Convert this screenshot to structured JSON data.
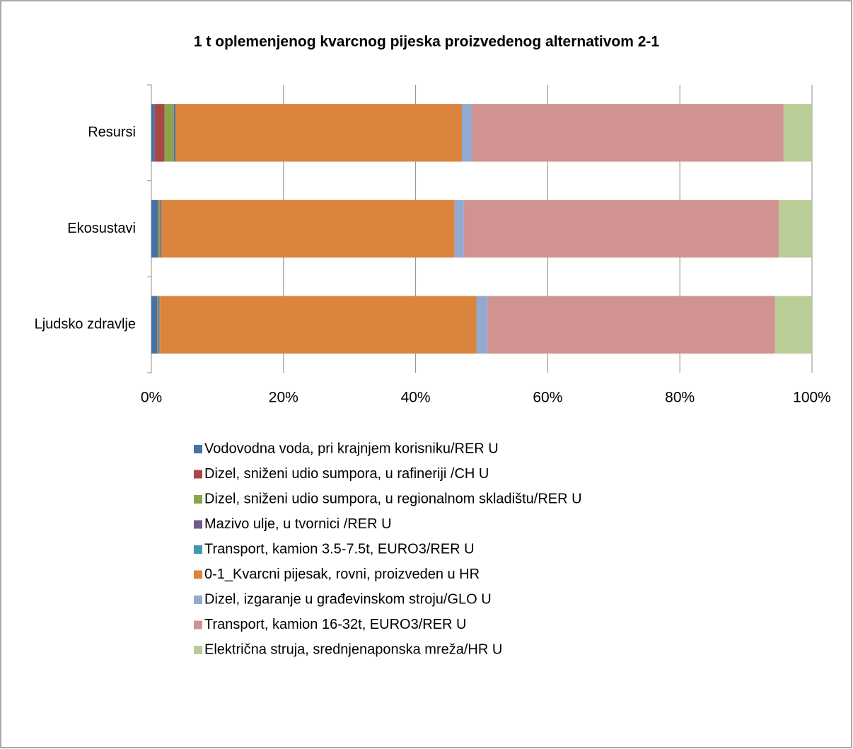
{
  "chart_data": {
    "type": "bar",
    "orientation": "horizontal",
    "stacked": true,
    "title": "1 t oplemenjenog kvarcnog pijeska proizvedenog alternativom 2-1",
    "categories": [
      "Resursi",
      "Ekosustavi",
      "Ljudsko zdravlje"
    ],
    "series": [
      {
        "name": "Vodovodna voda, pri krajnjem korisniku/RER U",
        "color": "#4572a7",
        "values": [
          0.5,
          1.0,
          0.8
        ]
      },
      {
        "name": "Dizel, sniženi udio sumpora, u rafineriji /CH U",
        "color": "#aa4643",
        "values": [
          1.5,
          0.1,
          0.1
        ]
      },
      {
        "name": "Dizel, sniženi udio sumpora, u regionalnom skladištu/RER U",
        "color": "#89a54e",
        "values": [
          1.4,
          0.2,
          0.2
        ]
      },
      {
        "name": "Mazivo ulje, u tvornici /RER U",
        "color": "#71588f",
        "values": [
          0.2,
          0.1,
          0.1
        ]
      },
      {
        "name": "Transport, kamion 3.5-7.5t, EURO3/RER U",
        "color": "#4198af",
        "values": [
          0.1,
          0.1,
          0.1
        ]
      },
      {
        "name": "0-1_Kvarcni pijesak, rovni, proizveden u HR",
        "color": "#db843d",
        "values": [
          43.3,
          44.4,
          47.9
        ]
      },
      {
        "name": "Dizel, izgaranje u građevinskom stroju/GLO U",
        "color": "#93a9cf",
        "values": [
          1.5,
          1.4,
          1.7
        ]
      },
      {
        "name": "Transport, kamion 16-32t, EURO3/RER U",
        "color": "#d19392",
        "values": [
          47.2,
          47.7,
          43.5
        ]
      },
      {
        "name": "Električna struja, srednjenaponska mreža/HR U",
        "color": "#b9cd96",
        "values": [
          4.3,
          5.0,
          5.6
        ]
      }
    ],
    "xlim": [
      0,
      100
    ],
    "xticks": [
      {
        "value": 0,
        "label": "0%"
      },
      {
        "value": 20,
        "label": "20%"
      },
      {
        "value": 40,
        "label": "40%"
      },
      {
        "value": 60,
        "label": "60%"
      },
      {
        "value": 80,
        "label": "80%"
      },
      {
        "value": 100,
        "label": "100%"
      }
    ],
    "grid": true,
    "legend": "bottom"
  }
}
